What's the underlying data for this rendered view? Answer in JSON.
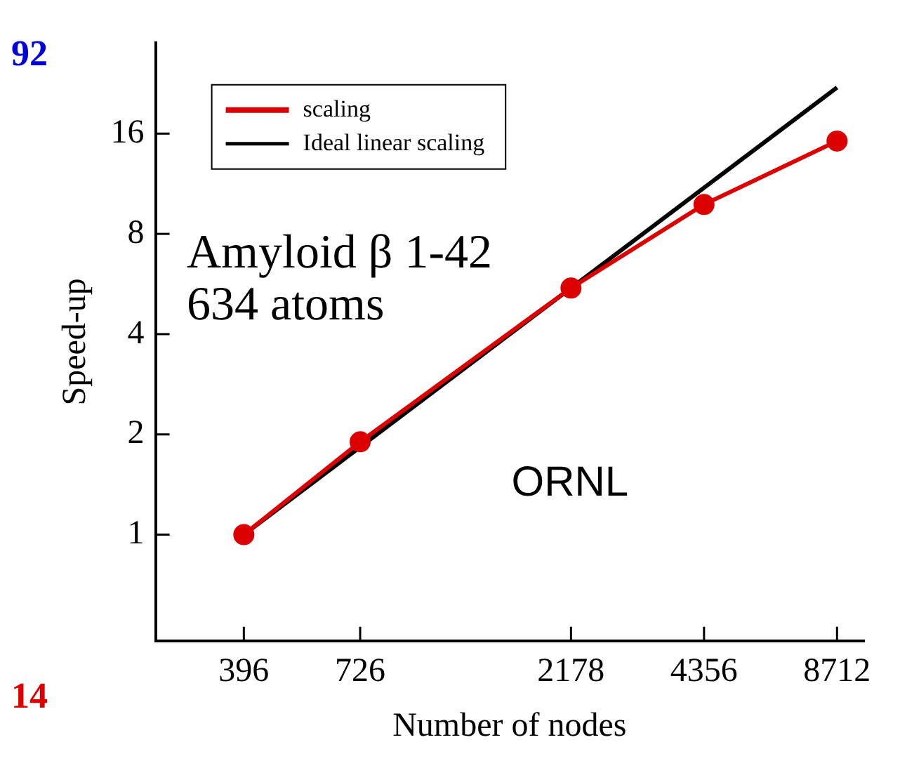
{
  "chart_data": {
    "type": "line",
    "xlabel": "Number of nodes",
    "ylabel": "Speed-up",
    "log": "xy",
    "xlim": [
      250,
      10000
    ],
    "xticks": [
      396,
      726,
      2178,
      4356,
      8712
    ],
    "ylim": [
      0.48,
      30
    ],
    "yticks": [
      1,
      2,
      4,
      8,
      16
    ],
    "grid": false,
    "legend": "top left",
    "series": [
      {
        "name": "scaling",
        "color": "#dd0000",
        "marker": "circle",
        "x": [
          396,
          726,
          2178,
          4356,
          8712
        ],
        "values": [
          1,
          1.9,
          5.5,
          9.8,
          15.2
        ]
      },
      {
        "name": "Ideal linear scaling",
        "color": "#000000",
        "marker": "none",
        "x": [
          396,
          8712
        ],
        "values": [
          1,
          22
        ]
      }
    ],
    "annotations": [
      "Amyloid β 1-42",
      "634 atoms",
      "ORNL",
      "92",
      "14"
    ]
  }
}
